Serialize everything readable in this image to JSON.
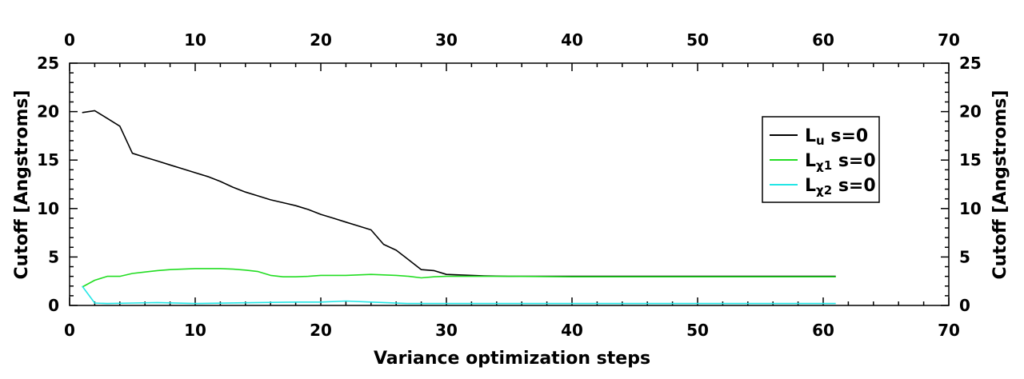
{
  "chart_data": {
    "type": "line",
    "xlabel": "Variance optimization steps",
    "ylabel": "Cutoff [Angstroms]",
    "ylabel_right": "Cutoff [Angstroms]",
    "xlim": [
      0,
      70
    ],
    "ylim": [
      0,
      25
    ],
    "x_ticks": [
      0,
      10,
      20,
      30,
      40,
      50,
      60,
      70
    ],
    "y_ticks": [
      0,
      5,
      10,
      15,
      20,
      25
    ],
    "x_tick_labels": [
      "0",
      "10",
      "20",
      "30",
      "40",
      "50",
      "60",
      "70"
    ],
    "y_tick_labels": [
      "0",
      "5",
      "10",
      "15",
      "20",
      "25"
    ],
    "top_axis_mirrors_bottom": true,
    "right_axis_mirrors_left": true,
    "grid": false,
    "legend_position": "right",
    "series": [
      {
        "name": "Lu s=0",
        "label_main": "L",
        "label_sub": "u",
        "label_rest": " s=0",
        "color": "#000000",
        "x": [
          1,
          2,
          3,
          4,
          5,
          6,
          7,
          8,
          9,
          10,
          11,
          12,
          13,
          14,
          15,
          16,
          17,
          18,
          19,
          20,
          21,
          22,
          23,
          24,
          25,
          26,
          27,
          28,
          29,
          30,
          31,
          32,
          33,
          35,
          40,
          50,
          61
        ],
        "y": [
          19.9,
          20.1,
          19.3,
          18.5,
          15.7,
          15.3,
          14.9,
          14.5,
          14.1,
          13.7,
          13.3,
          12.8,
          12.2,
          11.7,
          11.3,
          10.9,
          10.6,
          10.3,
          9.9,
          9.4,
          9.0,
          8.6,
          8.2,
          7.8,
          6.3,
          5.7,
          4.7,
          3.7,
          3.6,
          3.2,
          3.15,
          3.1,
          3.05,
          3.0,
          3.0,
          3.0,
          3.0
        ]
      },
      {
        "name": "Lχ1 s=0",
        "label_main": "L",
        "label_sub": "χ1",
        "label_rest": " s=0",
        "color": "#22dd22",
        "x": [
          1,
          2,
          3,
          4,
          5,
          6,
          7,
          8,
          9,
          10,
          11,
          12,
          13,
          14,
          15,
          16,
          17,
          18,
          19,
          20,
          21,
          22,
          23,
          24,
          25,
          26,
          27,
          28,
          29,
          30,
          31,
          32,
          33,
          35,
          40,
          50,
          61
        ],
        "y": [
          1.9,
          2.6,
          3.0,
          3.0,
          3.3,
          3.45,
          3.6,
          3.7,
          3.75,
          3.8,
          3.8,
          3.8,
          3.75,
          3.65,
          3.5,
          3.1,
          2.95,
          2.95,
          3.0,
          3.1,
          3.1,
          3.1,
          3.15,
          3.2,
          3.15,
          3.1,
          3.0,
          2.85,
          2.95,
          3.0,
          3.0,
          3.0,
          3.0,
          3.0,
          2.95,
          2.95,
          2.95
        ]
      },
      {
        "name": "Lχ2 s=0",
        "label_main": "L",
        "label_sub": "χ2",
        "label_rest": " s=0",
        "color": "#22e6e6",
        "x": [
          1,
          2,
          3,
          5,
          7,
          10,
          15,
          18,
          20,
          22,
          24,
          27,
          30,
          40,
          50,
          61
        ],
        "y": [
          2.0,
          0.25,
          0.2,
          0.25,
          0.3,
          0.2,
          0.3,
          0.35,
          0.35,
          0.45,
          0.35,
          0.2,
          0.2,
          0.2,
          0.2,
          0.2
        ]
      }
    ]
  }
}
